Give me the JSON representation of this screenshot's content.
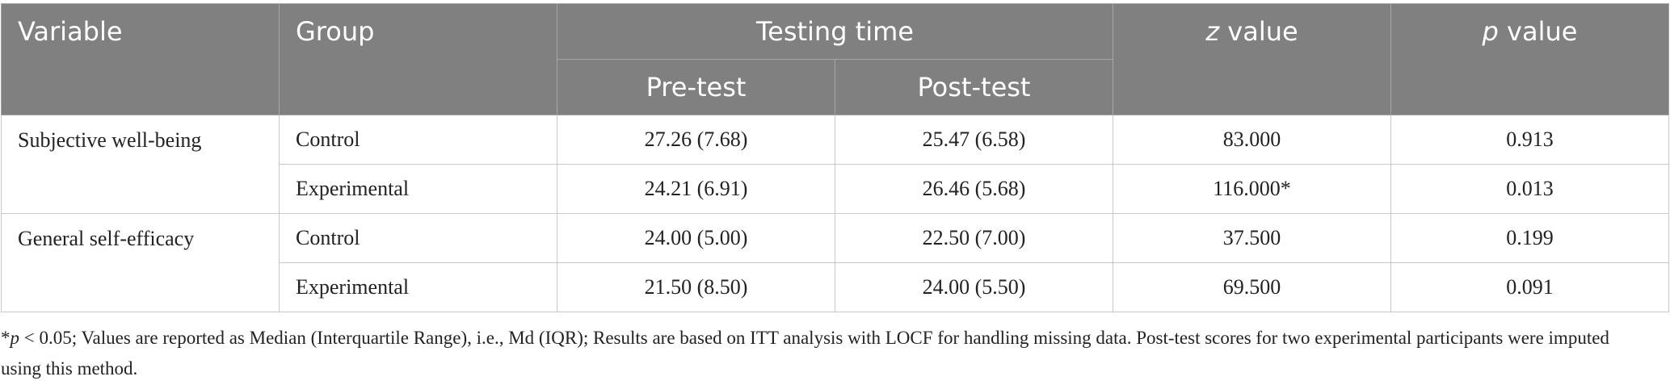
{
  "header": {
    "variable": "Variable",
    "group": "Group",
    "testing_time": "Testing time",
    "pre_test": "Pre-test",
    "post_test": "Post-test",
    "z_symbol": "z",
    "z_rest": "value",
    "p_symbol": "p",
    "p_rest": "value"
  },
  "table": {
    "rows": [
      [
        "Subjective well-being",
        "Control",
        "27.26 (7.68)",
        "25.47 (6.58)",
        "83.000",
        "0.913"
      ],
      [
        null,
        "Experimental",
        "24.21 (6.91)",
        "26.46 (5.68)",
        "116.000*",
        "0.013"
      ],
      [
        "General self-efficacy",
        "Control",
        "24.00 (5.00)",
        "22.50 (7.00)",
        "37.500",
        "0.199"
      ],
      [
        null,
        "Experimental",
        "21.50 (8.50)",
        "24.00 (5.50)",
        "69.500",
        "0.091"
      ]
    ]
  },
  "footnote": {
    "mark": "*",
    "p_symbol": "p",
    "text": "< 0.05; Values are reported as Median (Interquartile Range), i.e., Md (IQR); Results are based on ITT analysis with LOCF for handling missing data. Post-test scores for two experimental participants were imputed using this method."
  }
}
